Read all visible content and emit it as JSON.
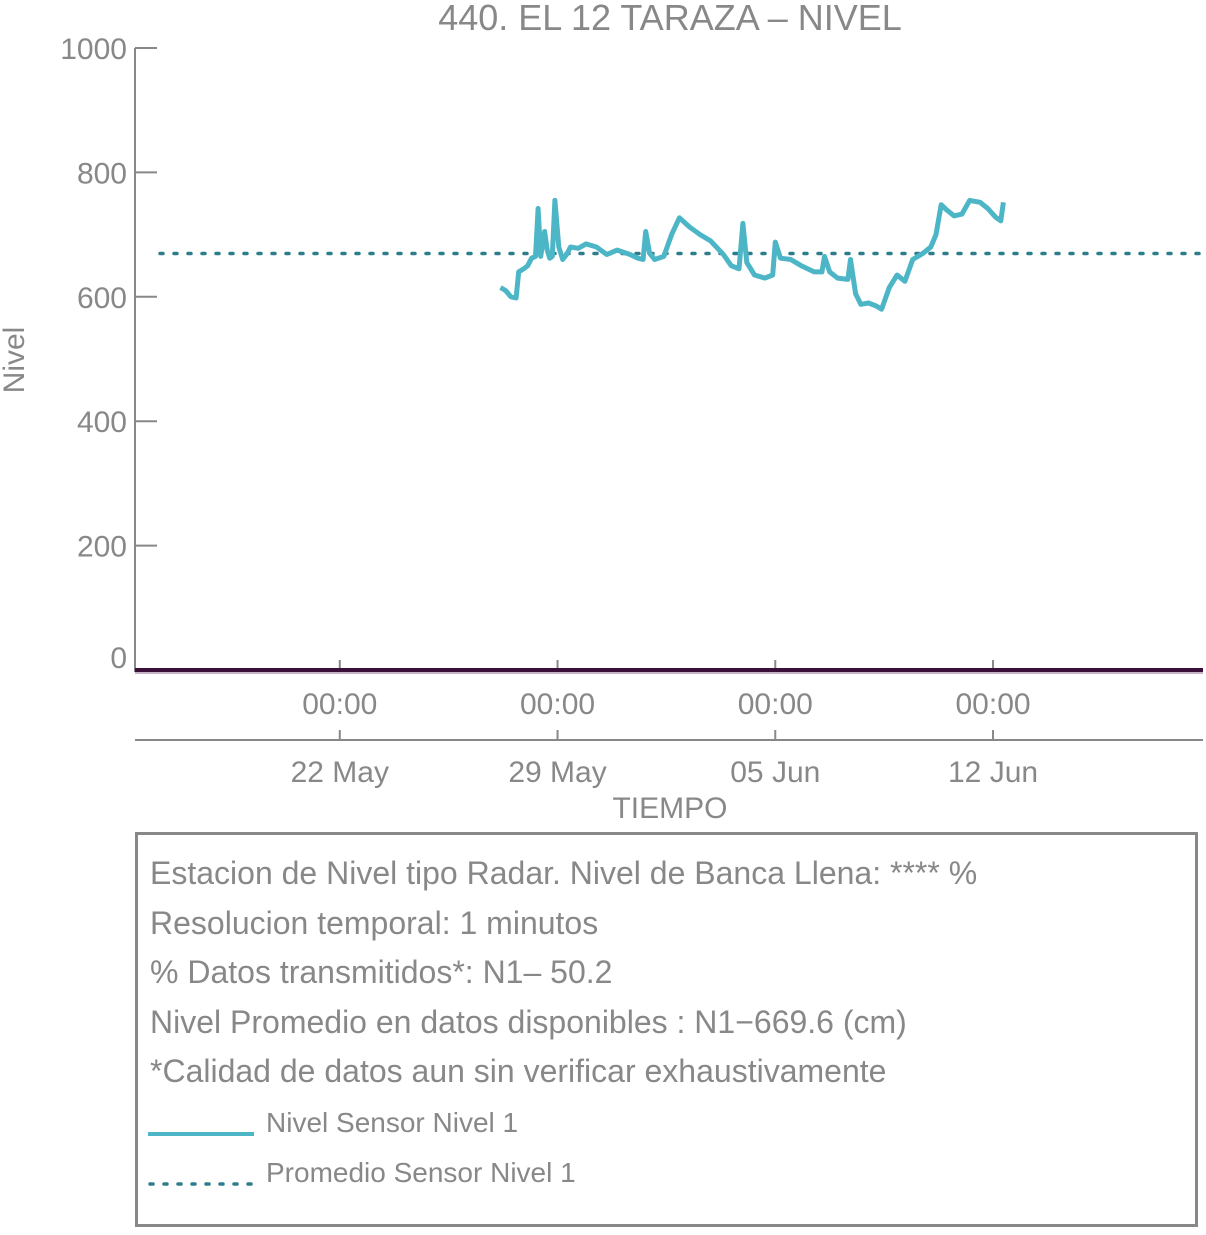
{
  "colors": {
    "series_level": "#4db6c6",
    "series_mean": "#2e7d8c",
    "axis": "#888888",
    "zero_line": "#3a0f3a"
  },
  "chart_data": {
    "type": "line",
    "title": "440. EL 12 TARAZA – NIVEL",
    "xlabel": "TIEMPO",
    "ylabel": "Nivel",
    "ylim": [
      0,
      1000
    ],
    "xlim": [
      "2024-05-15T10:00",
      "2024-06-18T18:00"
    ],
    "y_ticks": [
      0,
      200,
      400,
      600,
      800,
      1000
    ],
    "x_ticks": [
      {
        "t": "2024-05-22T00:00",
        "time": "00:00",
        "date": "22 May"
      },
      {
        "t": "2024-05-29T00:00",
        "time": "00:00",
        "date": "29 May"
      },
      {
        "t": "2024-06-05T00:00",
        "time": "00:00",
        "date": "05 Jun"
      },
      {
        "t": "2024-06-12T00:00",
        "time": "00:00",
        "date": "12 Jun"
      }
    ],
    "grid": false,
    "legend_position": "bottom",
    "series": [
      {
        "name": "Nivel Sensor Nivel 1",
        "style": "solid",
        "points": [
          [
            "2024-05-27T04:00",
            615
          ],
          [
            "2024-05-27T08:00",
            610
          ],
          [
            "2024-05-27T12:00",
            600
          ],
          [
            "2024-05-27T16:00",
            598
          ],
          [
            "2024-05-27T18:00",
            640
          ],
          [
            "2024-05-27T22:00",
            645
          ],
          [
            "2024-05-28T01:00",
            650
          ],
          [
            "2024-05-28T04:00",
            662
          ],
          [
            "2024-05-28T07:00",
            665
          ],
          [
            "2024-05-28T09:00",
            742
          ],
          [
            "2024-05-28T11:00",
            665
          ],
          [
            "2024-05-28T14:00",
            705
          ],
          [
            "2024-05-28T16:00",
            675
          ],
          [
            "2024-05-28T18:00",
            662
          ],
          [
            "2024-05-28T20:00",
            665
          ],
          [
            "2024-05-28T22:00",
            755
          ],
          [
            "2024-05-29T01:00",
            680
          ],
          [
            "2024-05-29T04:00",
            660
          ],
          [
            "2024-05-29T07:00",
            668
          ],
          [
            "2024-05-29T10:00",
            680
          ],
          [
            "2024-05-29T16:00",
            678
          ],
          [
            "2024-05-29T22:00",
            685
          ],
          [
            "2024-05-30T06:00",
            680
          ],
          [
            "2024-05-30T14:00",
            668
          ],
          [
            "2024-05-30T22:00",
            675
          ],
          [
            "2024-05-31T08:00",
            668
          ],
          [
            "2024-05-31T14:00",
            662
          ],
          [
            "2024-05-31T18:00",
            660
          ],
          [
            "2024-05-31T20:00",
            705
          ],
          [
            "2024-05-31T23:00",
            670
          ],
          [
            "2024-06-01T03:00",
            660
          ],
          [
            "2024-06-01T10:00",
            665
          ],
          [
            "2024-06-01T16:00",
            700
          ],
          [
            "2024-06-01T22:00",
            727
          ],
          [
            "2024-06-02T06:00",
            712
          ],
          [
            "2024-06-02T14:00",
            700
          ],
          [
            "2024-06-02T22:00",
            690
          ],
          [
            "2024-06-03T08:00",
            668
          ],
          [
            "2024-06-03T14:00",
            650
          ],
          [
            "2024-06-03T20:00",
            645
          ],
          [
            "2024-06-03T23:00",
            718
          ],
          [
            "2024-06-04T02:00",
            655
          ],
          [
            "2024-06-04T08:00",
            635
          ],
          [
            "2024-06-04T16:00",
            630
          ],
          [
            "2024-06-04T22:00",
            635
          ],
          [
            "2024-06-05T00:00",
            688
          ],
          [
            "2024-06-05T04:00",
            662
          ],
          [
            "2024-06-05T12:00",
            660
          ],
          [
            "2024-06-05T20:00",
            650
          ],
          [
            "2024-06-06T06:00",
            640
          ],
          [
            "2024-06-06T12:00",
            640
          ],
          [
            "2024-06-06T14:00",
            665
          ],
          [
            "2024-06-06T18:00",
            640
          ],
          [
            "2024-06-07T00:00",
            630
          ],
          [
            "2024-06-07T08:00",
            628
          ],
          [
            "2024-06-07T10:00",
            660
          ],
          [
            "2024-06-07T14:00",
            605
          ],
          [
            "2024-06-07T18:00",
            588
          ],
          [
            "2024-06-08T00:00",
            590
          ],
          [
            "2024-06-08T06:00",
            585
          ],
          [
            "2024-06-08T10:00",
            580
          ],
          [
            "2024-06-08T16:00",
            615
          ],
          [
            "2024-06-08T22:00",
            635
          ],
          [
            "2024-06-09T04:00",
            625
          ],
          [
            "2024-06-09T10:00",
            660
          ],
          [
            "2024-06-09T18:00",
            670
          ],
          [
            "2024-06-10T00:00",
            680
          ],
          [
            "2024-06-10T04:00",
            700
          ],
          [
            "2024-06-10T08:00",
            748
          ],
          [
            "2024-06-10T12:00",
            740
          ],
          [
            "2024-06-10T18:00",
            730
          ],
          [
            "2024-06-11T00:00",
            733
          ],
          [
            "2024-06-11T06:00",
            755
          ],
          [
            "2024-06-11T14:00",
            752
          ],
          [
            "2024-06-11T20:00",
            742
          ],
          [
            "2024-06-12T02:00",
            728
          ],
          [
            "2024-06-12T06:00",
            722
          ],
          [
            "2024-06-12T08:00",
            752
          ]
        ]
      },
      {
        "name": "Promedio Sensor Nivel 1",
        "style": "dotted",
        "constant": 669.6
      }
    ]
  },
  "info_box": {
    "lines": [
      "Estacion de Nivel tipo Radar. Nivel de Banca Llena: **** %",
      "Resolucion temporal: 1 minutos",
      "% Datos transmitidos*: N1– 50.2",
      "Nivel Promedio en datos disponibles : N1−669.6 (cm)",
      "*Calidad de datos aun sin verificar exhaustivamente"
    ],
    "legend": [
      {
        "label": "Nivel Sensor Nivel 1",
        "style": "solid"
      },
      {
        "label": "Promedio Sensor Nivel 1",
        "style": "dotted"
      }
    ]
  }
}
